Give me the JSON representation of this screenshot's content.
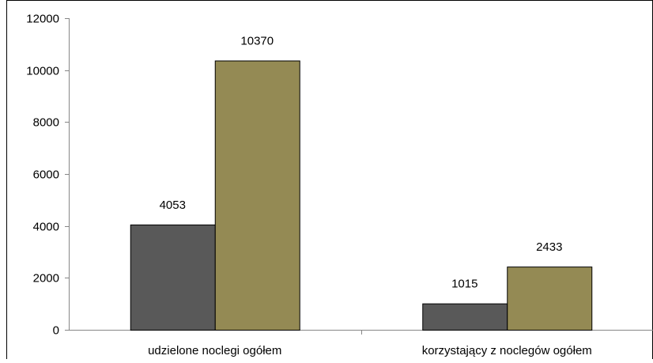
{
  "chart_data": {
    "type": "bar",
    "title": "",
    "xlabel": "",
    "ylabel": "",
    "categories": [
      "udzielone noclegi ogółem",
      "korzystający z noclegów ogółem"
    ],
    "series": [
      {
        "values": [
          4053,
          1015
        ],
        "color": "#595959"
      },
      {
        "values": [
          10370,
          2433
        ],
        "color": "#948A54"
      }
    ],
    "data_labels": [
      [
        "4053",
        "1015"
      ],
      [
        "10370",
        "2433"
      ]
    ],
    "ylim": [
      0,
      12000
    ],
    "yticks": [
      0,
      2000,
      4000,
      6000,
      8000,
      10000,
      12000
    ],
    "ytick_labels": [
      "0",
      "2000",
      "4000",
      "6000",
      "8000",
      "10000",
      "12000"
    ],
    "grid": false,
    "legend": "none"
  }
}
